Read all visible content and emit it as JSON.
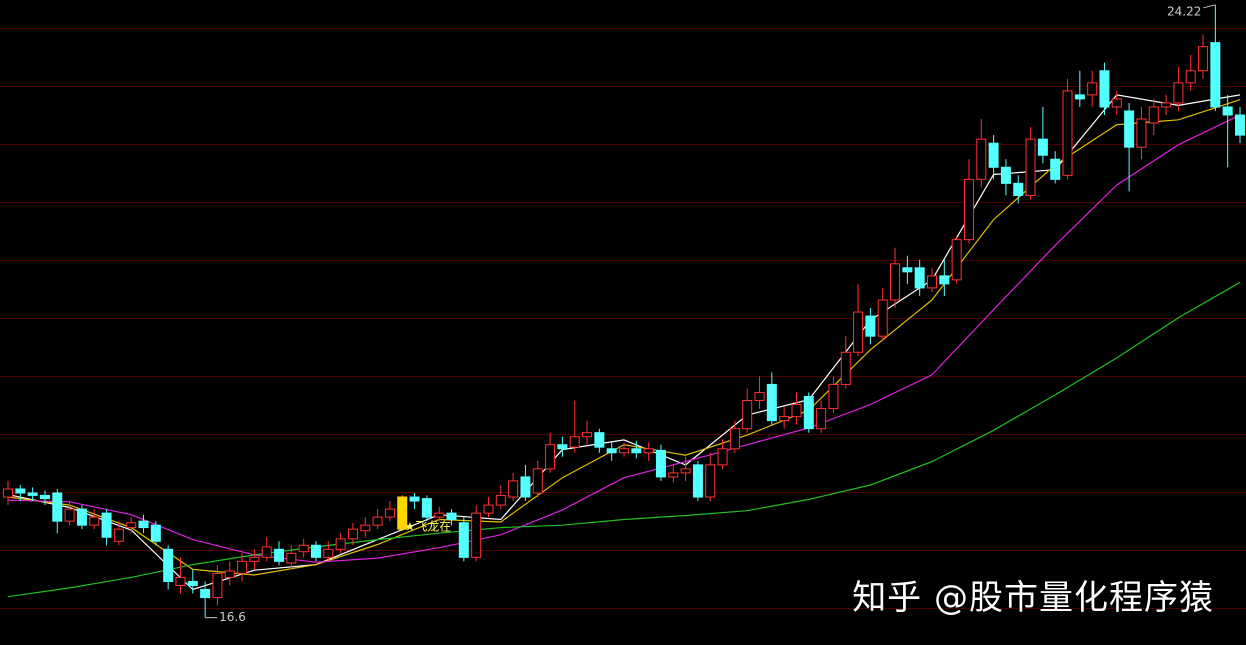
{
  "chart_data": {
    "type": "candlestick",
    "ylim": [
      16.26,
      24.28
    ],
    "up_color": "#ff3232",
    "down_color": "#54ffff",
    "highlight_color": "#ffd700",
    "highlight_index": 32,
    "open": [
      18.1,
      18.2,
      18.15,
      18.12,
      18.15,
      17.8,
      17.95,
      17.75,
      17.9,
      17.55,
      17.72,
      17.8,
      17.75,
      17.45,
      17.0,
      17.05,
      16.95,
      16.85,
      17.1,
      17.15,
      17.3,
      17.35,
      17.45,
      17.28,
      17.42,
      17.5,
      17.35,
      17.45,
      17.58,
      17.68,
      17.75,
      17.85,
      17.7,
      18.1,
      18.08,
      17.85,
      17.9,
      17.78,
      17.35,
      17.9,
      18.0,
      18.1,
      18.35,
      18.15,
      18.45,
      18.75,
      18.72,
      18.85,
      18.9,
      18.7,
      18.65,
      18.7,
      18.65,
      18.68,
      18.35,
      18.4,
      18.5,
      18.1,
      18.5,
      18.7,
      18.95,
      19.3,
      19.5,
      19.05,
      19.1,
      19.35,
      18.95,
      19.2,
      19.5,
      19.9,
      20.35,
      20.1,
      20.55,
      20.95,
      20.95,
      20.7,
      20.85,
      20.8,
      21.3,
      22.05,
      22.5,
      22.2,
      22.0,
      21.85,
      22.55,
      22.3,
      22.1,
      23.1,
      23.1,
      23.4,
      22.95,
      22.9,
      22.45,
      22.75,
      22.95,
      23.0,
      23.25,
      23.4,
      23.75,
      22.95,
      22.85
    ],
    "high": [
      18.3,
      18.25,
      18.22,
      18.18,
      18.2,
      18.05,
      18.0,
      17.95,
      17.95,
      17.8,
      17.85,
      17.88,
      17.8,
      17.5,
      17.35,
      17.2,
      17.05,
      17.25,
      17.3,
      17.4,
      17.45,
      17.6,
      17.55,
      17.5,
      17.58,
      17.55,
      17.55,
      17.65,
      17.78,
      17.85,
      17.95,
      18.05,
      18.12,
      18.15,
      18.12,
      17.98,
      17.95,
      17.85,
      18.0,
      18.1,
      18.25,
      18.4,
      18.5,
      18.55,
      18.9,
      18.85,
      19.3,
      19.05,
      18.95,
      18.78,
      18.78,
      18.8,
      18.78,
      18.75,
      18.5,
      18.6,
      18.55,
      18.65,
      18.82,
      19.05,
      19.45,
      19.6,
      19.65,
      19.22,
      19.4,
      19.4,
      19.3,
      19.6,
      20.1,
      20.75,
      20.45,
      20.7,
      21.2,
      21.1,
      21.05,
      20.95,
      21.05,
      21.35,
      22.3,
      22.8,
      22.6,
      22.3,
      22.1,
      22.7,
      22.95,
      22.4,
      23.3,
      23.4,
      23.4,
      23.5,
      23.15,
      23.0,
      22.95,
      23.05,
      23.1,
      23.45,
      23.6,
      23.85,
      24.22,
      23.1,
      22.95
    ],
    "low": [
      18.0,
      18.05,
      18.05,
      18.0,
      17.65,
      17.75,
      17.7,
      17.7,
      17.5,
      17.5,
      17.65,
      17.65,
      17.5,
      16.95,
      16.9,
      16.9,
      16.6,
      16.75,
      17.0,
      17.05,
      17.2,
      17.3,
      17.25,
      17.2,
      17.35,
      17.3,
      17.3,
      17.4,
      17.5,
      17.6,
      17.7,
      17.8,
      17.68,
      17.95,
      17.8,
      17.8,
      17.75,
      17.3,
      17.3,
      17.85,
      17.95,
      18.05,
      18.05,
      18.1,
      18.4,
      18.6,
      18.65,
      18.75,
      18.65,
      18.55,
      18.6,
      18.58,
      18.55,
      18.3,
      18.28,
      18.3,
      18.05,
      18.05,
      18.45,
      18.65,
      18.9,
      19.2,
      19.0,
      18.95,
      19.0,
      18.9,
      18.9,
      19.15,
      19.45,
      19.85,
      20.0,
      20.05,
      20.45,
      20.75,
      20.6,
      20.65,
      20.6,
      20.75,
      21.25,
      21.95,
      22.05,
      21.85,
      21.75,
      21.8,
      22.25,
      22.0,
      22.05,
      22.95,
      22.95,
      22.85,
      22.85,
      21.9,
      22.3,
      22.6,
      22.85,
      22.9,
      23.15,
      23.3,
      22.9,
      22.2,
      22.5
    ],
    "close": [
      18.2,
      18.15,
      18.12,
      18.08,
      17.8,
      17.95,
      17.75,
      17.85,
      17.6,
      17.7,
      17.78,
      17.72,
      17.55,
      17.05,
      17.1,
      17.0,
      16.85,
      17.15,
      17.18,
      17.3,
      17.35,
      17.48,
      17.3,
      17.4,
      17.5,
      17.35,
      17.45,
      17.58,
      17.7,
      17.75,
      17.85,
      17.95,
      18.1,
      18.05,
      17.85,
      17.9,
      17.82,
      17.35,
      17.9,
      18.0,
      18.12,
      18.3,
      18.1,
      18.45,
      18.75,
      18.7,
      18.85,
      18.9,
      18.72,
      18.65,
      18.7,
      18.65,
      18.7,
      18.35,
      18.4,
      18.45,
      18.1,
      18.5,
      18.7,
      18.95,
      19.3,
      19.4,
      19.05,
      19.1,
      19.25,
      18.95,
      19.2,
      19.5,
      19.9,
      20.4,
      20.1,
      20.55,
      21.0,
      20.9,
      20.7,
      20.85,
      20.75,
      21.3,
      22.05,
      22.55,
      22.2,
      22.0,
      21.85,
      22.55,
      22.35,
      22.05,
      23.15,
      23.05,
      23.25,
      22.95,
      23.05,
      22.45,
      22.8,
      22.95,
      23.0,
      23.25,
      23.4,
      23.7,
      22.95,
      22.85,
      22.6
    ],
    "lines": [
      {
        "color": "#ffffff",
        "x": [
          0,
          5,
          10,
          15,
          20,
          25,
          30,
          35,
          40,
          45,
          50,
          55,
          60,
          65,
          70,
          75,
          80,
          85,
          90,
          95,
          100
        ],
        "values": [
          18.13,
          17.97,
          17.69,
          16.95,
          17.19,
          17.26,
          17.57,
          17.88,
          17.82,
          18.69,
          18.81,
          18.5,
          19.12,
          19.31,
          20.3,
          20.8,
          22.11,
          22.17,
          23.1,
          22.97,
          23.1
        ]
      },
      {
        "color": "#e0c000",
        "x": [
          0,
          5,
          10,
          15,
          20,
          25,
          30,
          35,
          40,
          45,
          50,
          55,
          60,
          65,
          70,
          75,
          80,
          85,
          90,
          95,
          100
        ],
        "values": [
          18.1,
          18.0,
          17.72,
          17.2,
          17.13,
          17.26,
          17.51,
          17.82,
          17.79,
          18.34,
          18.75,
          18.62,
          18.87,
          19.18,
          19.93,
          20.55,
          21.55,
          22.23,
          22.73,
          22.79,
          23.04
        ]
      },
      {
        "color": "#e020e0",
        "x": [
          0,
          5,
          10,
          15,
          20,
          25,
          30,
          35,
          40,
          45,
          50,
          55,
          60,
          65,
          70,
          75,
          80,
          85,
          90,
          95,
          100
        ],
        "values": [
          18.06,
          18.04,
          17.88,
          17.57,
          17.38,
          17.29,
          17.34,
          17.47,
          17.63,
          17.94,
          18.34,
          18.54,
          18.75,
          18.96,
          19.25,
          19.62,
          20.43,
          21.23,
          21.98,
          22.48,
          22.85
        ]
      },
      {
        "color": "#20c020",
        "x": [
          0,
          5,
          10,
          15,
          20,
          25,
          30,
          35,
          40,
          45,
          50,
          55,
          60,
          65,
          70,
          75,
          80,
          85,
          90,
          95,
          100
        ],
        "values": [
          16.86,
          16.97,
          17.1,
          17.26,
          17.38,
          17.48,
          17.57,
          17.65,
          17.72,
          17.75,
          17.82,
          17.87,
          17.93,
          18.07,
          18.25,
          18.54,
          18.93,
          19.37,
          19.83,
          20.33,
          20.77
        ]
      }
    ],
    "max_label": {
      "index": 98,
      "value": 24.22
    },
    "min_label": {
      "index": 16,
      "value": 16.6
    },
    "signal": {
      "index": 33,
      "text": "★飞龙在"
    }
  },
  "watermark": "知乎 @股市量化程序猿"
}
